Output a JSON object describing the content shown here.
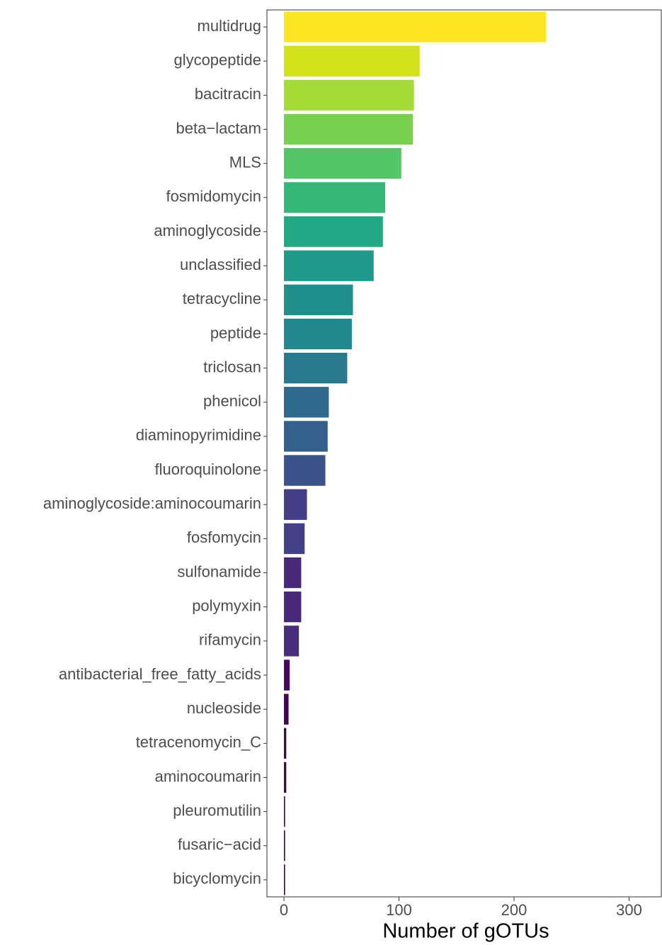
{
  "chart_data": {
    "type": "barh",
    "xlabel": "Number of gOTUs",
    "categories": [
      "multidrug",
      "glycopeptide",
      "bacitracin",
      "beta−lactam",
      "MLS",
      "fosmidomycin",
      "aminoglycoside",
      "unclassified",
      "tetracycline",
      "peptide",
      "triclosan",
      "phenicol",
      "diaminopyrimidine",
      "fluoroquinolone",
      "aminoglycoside:aminocoumarin",
      "fosfomycin",
      "sulfonamide",
      "polymyxin",
      "rifamycin",
      "antibacterial_free_fatty_acids",
      "nucleoside",
      "tetracenomycin_C",
      "aminocoumarin",
      "pleuromutilin",
      "fusaric−acid",
      "bicyclomycin"
    ],
    "values": [
      228,
      118,
      113,
      112,
      102,
      88,
      86,
      78,
      60,
      59,
      55,
      39,
      38,
      36,
      20,
      18,
      15,
      15,
      13,
      5,
      4,
      2,
      2,
      1,
      1,
      1
    ],
    "colors": [
      "#FDE725",
      "#D2E21B",
      "#A5DB36",
      "#7AD151",
      "#54C568",
      "#35B779",
      "#22A884",
      "#1F9A8A",
      "#21908D",
      "#23888E",
      "#2A788E",
      "#31688E",
      "#35608D",
      "#3B528B",
      "#433E85",
      "#424086",
      "#482878",
      "#482878",
      "#472D7B",
      "#46085C",
      "#440154",
      "#440154",
      "#440154",
      "#440154",
      "#440154",
      "#440154"
    ],
    "xlim": [
      -14.8,
      328
    ],
    "xticks": [
      0,
      100,
      200,
      300
    ]
  }
}
